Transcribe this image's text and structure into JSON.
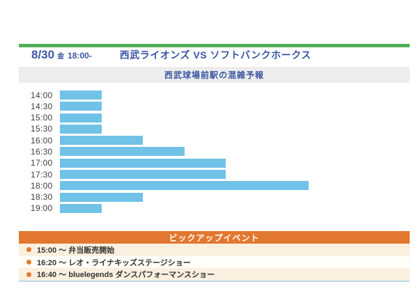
{
  "header": {
    "date": "8/30",
    "day": "金",
    "start_time": "18:00-",
    "match_title": "西武ライオンズ VS ソフトバンクホークス",
    "text_color": "#3a55a3",
    "accent_bar_color": "#53ae58"
  },
  "chart_data": {
    "type": "bar",
    "orientation": "horizontal",
    "title": "西武球場前駅の混雑予報",
    "categories": [
      "14:00",
      "14:30",
      "15:00",
      "15:30",
      "16:00",
      "16:30",
      "17:00",
      "17:30",
      "18:00",
      "18:30",
      "19:00"
    ],
    "values": [
      1,
      1,
      1,
      1,
      2,
      3,
      4,
      4,
      6,
      2,
      1
    ],
    "xlabel": "",
    "ylabel": "",
    "xlim": [
      0,
      6.5
    ],
    "grid": false,
    "legend": false,
    "value_axis_visible": false,
    "bar_color": "#70c2e7",
    "label_color": "#3f3f3f"
  },
  "events": {
    "header": "ビックアップイベント",
    "header_bg": "#e2772f",
    "header_text_color": "#ffffff",
    "bullet_color": "#e8772c",
    "stripe_color": "#fbf0e0",
    "items": [
      {
        "text": "15:00 〜 弁当販売開始"
      },
      {
        "text": "16:20 〜 レオ・ライナキッズステージショー"
      },
      {
        "text": "16:40 〜 bluelegends ダンスパフォーマンスショー"
      }
    ]
  },
  "footer": {
    "divider_color": "#b9d8ea"
  }
}
